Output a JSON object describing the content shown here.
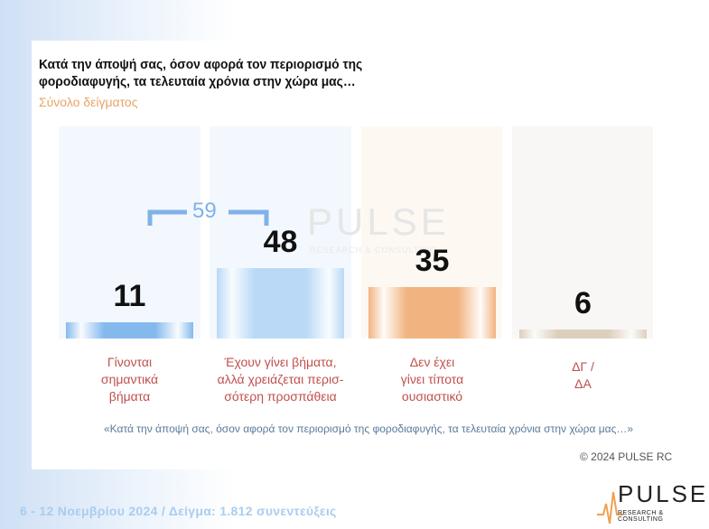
{
  "chart_data": {
    "type": "bar",
    "title": "Κατά την άποψή σας, όσον αφορά τον περιορισμό της\nφοροδιαφυγής, τα τελευταία χρόνια στην χώρα μας…",
    "subtitle": "Σύνολο δείγματος",
    "categories": [
      "Γίνονται\nσημαντικά\nβήματα",
      "Έχουν γίνει βήματα,\nαλλά χρειάζεται περισ-\nσότερη προσπάθεια",
      "Δεν έχει\nγίνει τίποτα\nουσιαστικό",
      "ΔΓ /\nΔΑ"
    ],
    "values": [
      11,
      48,
      35,
      6
    ],
    "colors": [
      "#84b9ee",
      "#b9d9f6",
      "#f1b37f",
      "#dccfbd"
    ],
    "group_total": 59,
    "footnote": "«Κατά την άποψή σας, όσον αφορά τον περιορισμό της φοροδιαφυγής, τα τελευταία χρόνια στην χώρα μας…»",
    "copyright": "© 2024 PULSE RC",
    "footer": "6 - 12  Νοεμβρίου  2024  /  Δείγμα:  1.812 συνεντεύξεις",
    "watermark": "PULSE",
    "watermark_sub": "RESEARCH & CONSULTING",
    "logo": "PULSE",
    "logo_sub": "RESEARCH & CONSULTING"
  }
}
